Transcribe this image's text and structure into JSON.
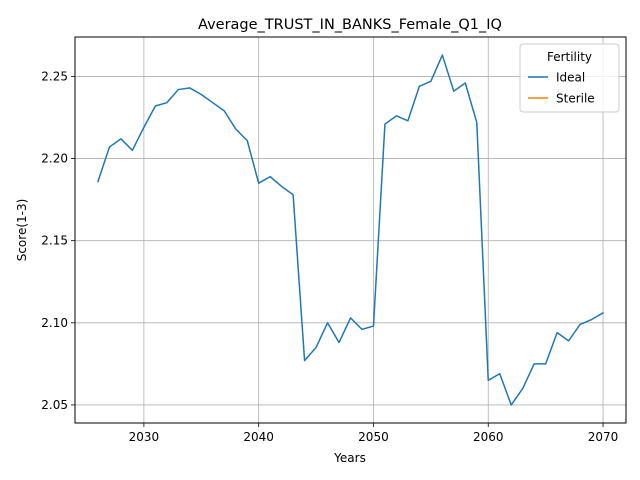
{
  "chart_data": {
    "type": "line",
    "title": "Average_TRUST_IN_BANKS_Female_Q1_IQ",
    "xlabel": "Years",
    "ylabel": "Score(1-3)",
    "xlim": [
      2024,
      2072
    ],
    "ylim": [
      2.039,
      2.274
    ],
    "xticks": [
      2030,
      2040,
      2050,
      2060,
      2070
    ],
    "yticks": [
      2.05,
      2.1,
      2.15,
      2.2,
      2.25
    ],
    "ytick_labels": [
      "2.05",
      "2.10",
      "2.15",
      "2.20",
      "2.25"
    ],
    "grid": true,
    "legend": {
      "title": "Fertility",
      "position": "top-right"
    },
    "series": [
      {
        "name": "Ideal",
        "color": "#1f77b4",
        "x": [
          2026,
          2027,
          2028,
          2029,
          2030,
          2031,
          2032,
          2033,
          2034,
          2035,
          2036,
          2037,
          2038,
          2039,
          2040,
          2041,
          2042,
          2043,
          2044,
          2045,
          2046,
          2047,
          2048,
          2049,
          2050,
          2051,
          2052,
          2053,
          2054,
          2055,
          2056,
          2057,
          2058,
          2059,
          2060,
          2061,
          2062,
          2063,
          2064,
          2065,
          2066,
          2067,
          2068,
          2069,
          2070
        ],
        "y": [
          2.186,
          2.207,
          2.212,
          2.205,
          2.219,
          2.232,
          2.234,
          2.242,
          2.243,
          2.239,
          2.234,
          2.229,
          2.218,
          2.211,
          2.185,
          2.189,
          2.183,
          2.178,
          2.077,
          2.085,
          2.1,
          2.088,
          2.103,
          2.096,
          2.098,
          2.221,
          2.226,
          2.223,
          2.244,
          2.247,
          2.263,
          2.241,
          2.246,
          2.222,
          2.065,
          2.069,
          2.05,
          2.06,
          2.075,
          2.075,
          2.094,
          2.089,
          2.099,
          2.102,
          2.106
        ]
      },
      {
        "name": "Sterile",
        "color": "#ff7f0e",
        "x": [],
        "y": []
      }
    ]
  }
}
